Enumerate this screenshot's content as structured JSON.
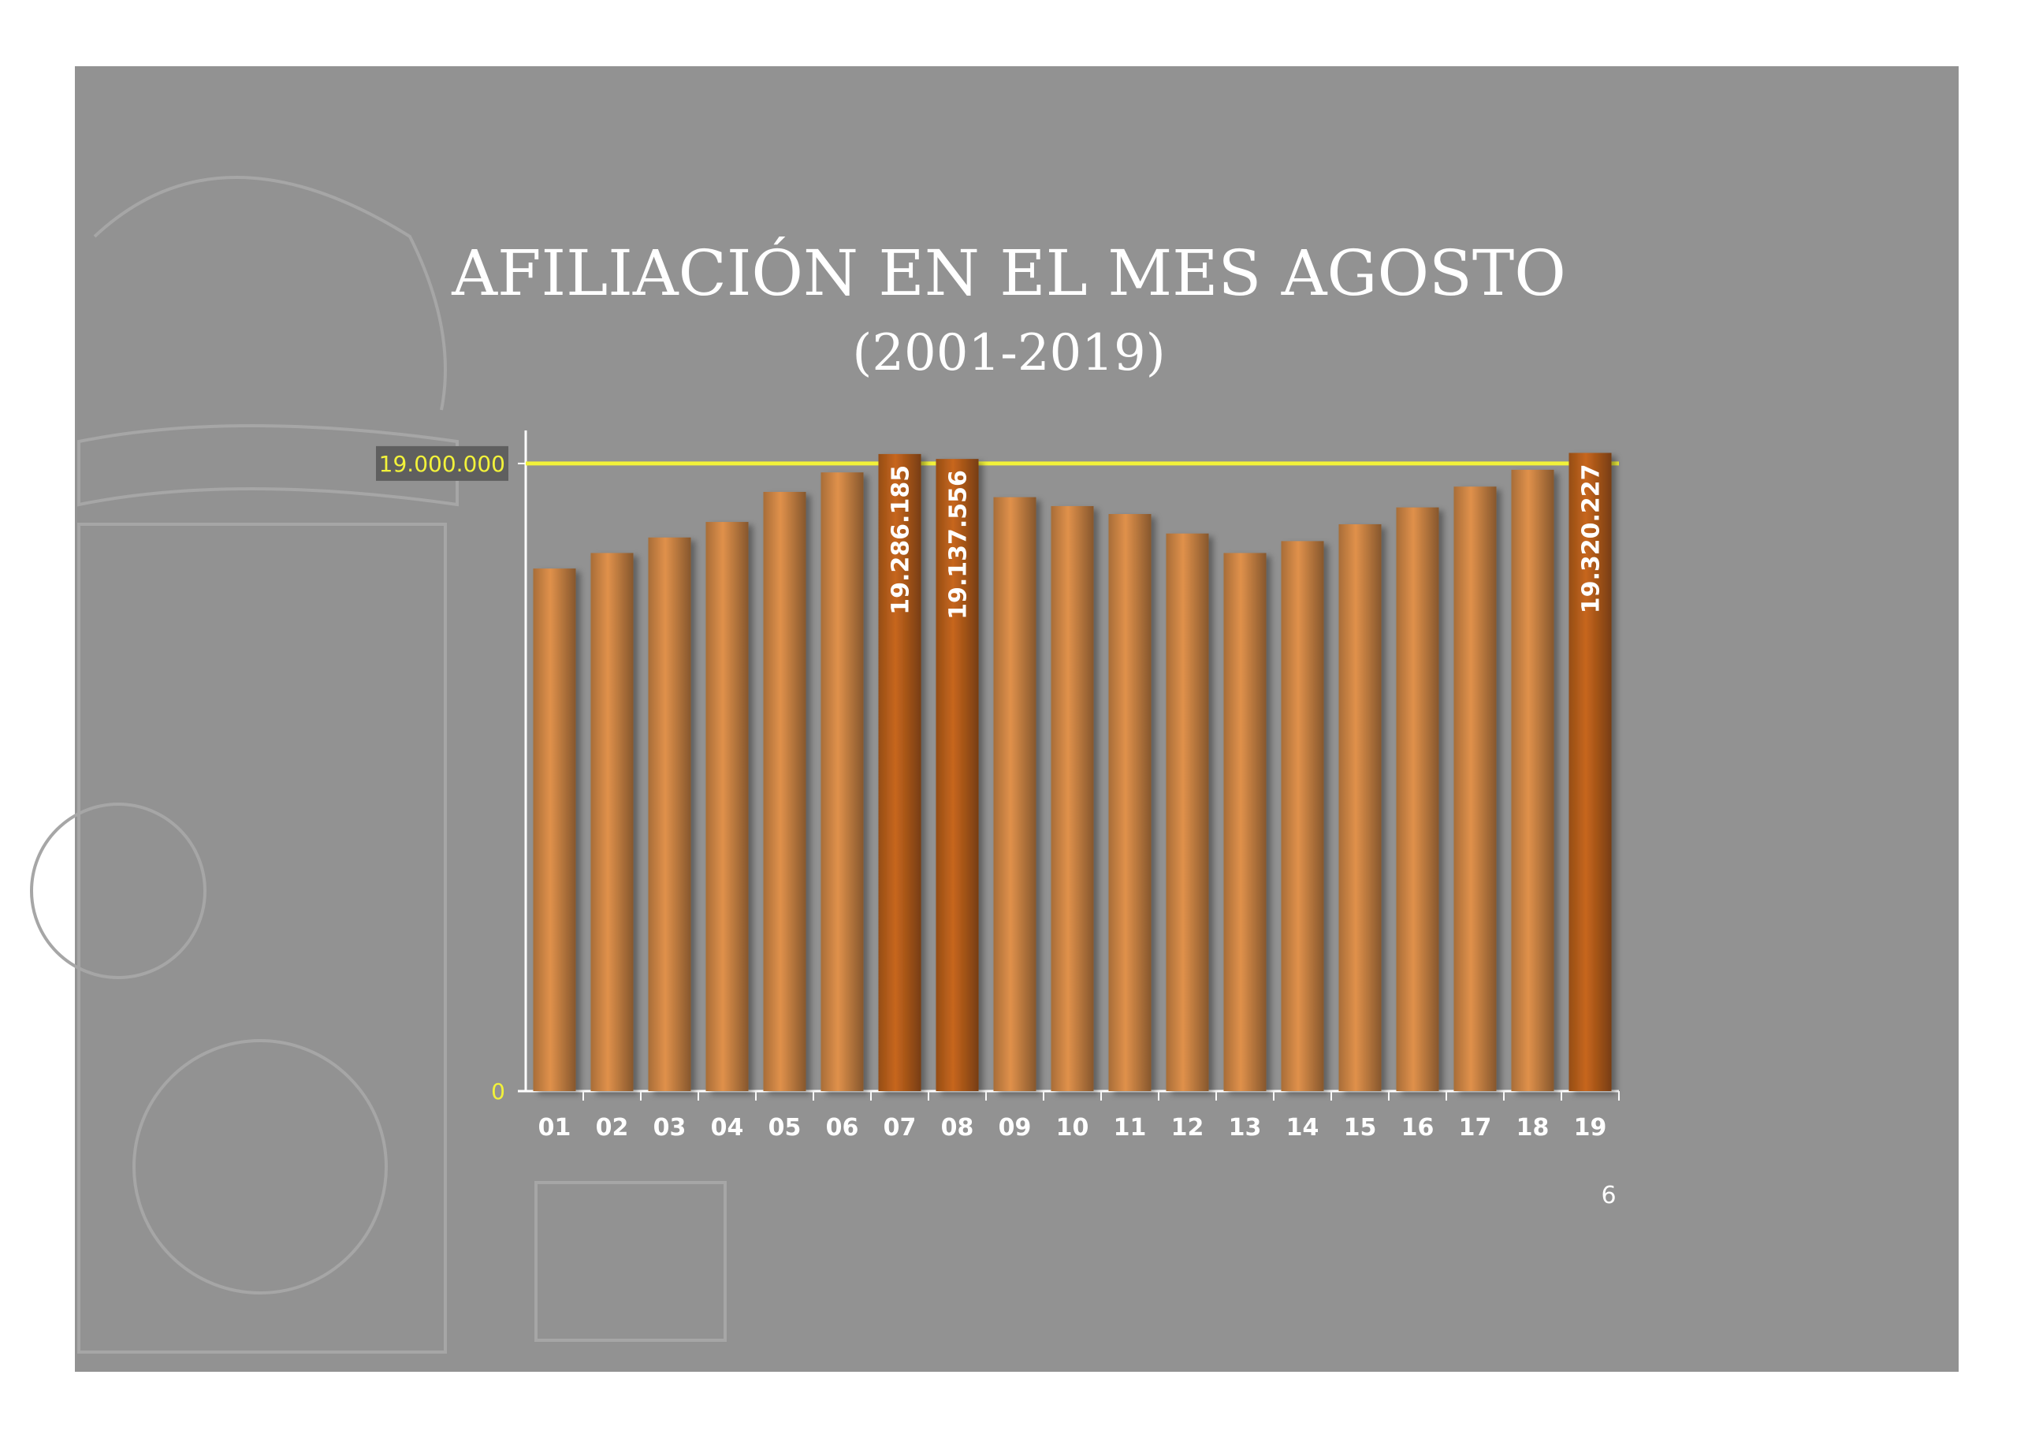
{
  "chart_data": {
    "type": "bar",
    "title": "AFILIACIÓN EN EL MES AGOSTO",
    "subtitle": "(2001-2019)",
    "categories": [
      "01",
      "02",
      "03",
      "04",
      "05",
      "06",
      "07",
      "08",
      "09",
      "10",
      "11",
      "12",
      "13",
      "14",
      "15",
      "16",
      "17",
      "18",
      "19"
    ],
    "values": [
      15820000,
      16290000,
      16760000,
      17230000,
      18140000,
      18730000,
      19286185,
      19137556,
      17980000,
      17710000,
      17470000,
      16880000,
      16290000,
      16650000,
      17160000,
      17670000,
      18300000,
      18810000,
      19320227
    ],
    "value_labels": [
      null,
      null,
      null,
      null,
      null,
      null,
      "19.286.185",
      "19.137.556",
      null,
      null,
      null,
      null,
      null,
      null,
      null,
      null,
      null,
      null,
      "19.320.227"
    ],
    "colors": [
      "#e0914b",
      "#e0914b",
      "#e0914b",
      "#e0914b",
      "#e0914b",
      "#e0914b",
      "#c7661d",
      "#c7661d",
      "#e0914b",
      "#e0914b",
      "#e0914b",
      "#e0914b",
      "#e0914b",
      "#e0914b",
      "#e0914b",
      "#e0914b",
      "#e0914b",
      "#e0914b",
      "#c7661d"
    ],
    "ylim": [
      0,
      20000000
    ],
    "yticks": [
      0,
      {
        "value": 19000000,
        "label": "19.000.000"
      }
    ],
    "grid_color": "#f2f23a",
    "page_number": "6"
  }
}
